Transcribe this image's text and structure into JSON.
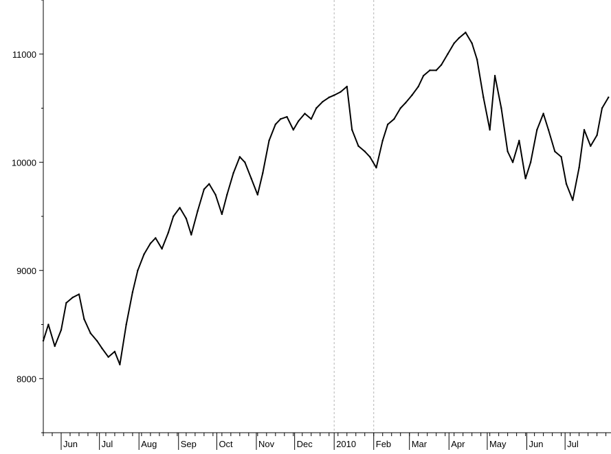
{
  "chart_data": {
    "type": "line",
    "title": "",
    "xlabel": "",
    "ylabel": "",
    "ylim": [
      7500,
      11500
    ],
    "grid": false,
    "y_ticks": [
      8000,
      9000,
      10000,
      11000
    ],
    "x_ticks": [
      "Jun",
      "Jul",
      "Aug",
      "Sep",
      "Oct",
      "Nov",
      "Dec",
      "2010",
      "Feb",
      "Mar",
      "Apr",
      "May",
      "Jun",
      "Jul"
    ],
    "x_tick_dates": [
      "2009-06-01",
      "2009-07-01",
      "2009-08-01",
      "2009-09-01",
      "2009-10-01",
      "2009-11-01",
      "2009-12-01",
      "2010-01-01",
      "2010-02-01",
      "2010-03-01",
      "2010-04-01",
      "2010-05-01",
      "2010-06-01",
      "2010-07-01"
    ],
    "xlim": [
      "2009-05-18",
      "2010-08-06"
    ],
    "vertical_reference_dates": [
      "2010-01-01",
      "2010-02-01"
    ],
    "series": [
      {
        "x": [
          "2009-05-18",
          "2009-05-22",
          "2009-05-27",
          "2009-06-01",
          "2009-06-05",
          "2009-06-10",
          "2009-06-15",
          "2009-06-19",
          "2009-06-24",
          "2009-06-29",
          "2009-07-03",
          "2009-07-08",
          "2009-07-13",
          "2009-07-17",
          "2009-07-22",
          "2009-07-27",
          "2009-07-31",
          "2009-08-05",
          "2009-08-10",
          "2009-08-14",
          "2009-08-19",
          "2009-08-24",
          "2009-08-28",
          "2009-09-02",
          "2009-09-07",
          "2009-09-11",
          "2009-09-16",
          "2009-09-21",
          "2009-09-25",
          "2009-09-30",
          "2009-10-05",
          "2009-10-09",
          "2009-10-14",
          "2009-10-19",
          "2009-10-23",
          "2009-10-28",
          "2009-11-02",
          "2009-11-06",
          "2009-11-11",
          "2009-11-16",
          "2009-11-20",
          "2009-11-25",
          "2009-11-30",
          "2009-12-04",
          "2009-12-09",
          "2009-12-14",
          "2009-12-18",
          "2009-12-23",
          "2009-12-28",
          "2010-01-01",
          "2010-01-06",
          "2010-01-11",
          "2010-01-15",
          "2010-01-20",
          "2010-01-25",
          "2010-01-29",
          "2010-02-03",
          "2010-02-08",
          "2010-02-12",
          "2010-02-17",
          "2010-02-22",
          "2010-02-26",
          "2010-03-03",
          "2010-03-08",
          "2010-03-12",
          "2010-03-17",
          "2010-03-22",
          "2010-03-26",
          "2010-03-31",
          "2010-04-05",
          "2010-04-09",
          "2010-04-14",
          "2010-04-19",
          "2010-04-23",
          "2010-04-28",
          "2010-05-03",
          "2010-05-07",
          "2010-05-12",
          "2010-05-17",
          "2010-05-21",
          "2010-05-26",
          "2010-05-31",
          "2010-06-04",
          "2010-06-09",
          "2010-06-14",
          "2010-06-18",
          "2010-06-23",
          "2010-06-28",
          "2010-07-02",
          "2010-07-07",
          "2010-07-12",
          "2010-07-16",
          "2010-07-21",
          "2010-07-26",
          "2010-07-30",
          "2010-08-04"
        ],
        "values": [
          8350,
          8500,
          8300,
          8450,
          8700,
          8750,
          8780,
          8550,
          8420,
          8350,
          8280,
          8200,
          8250,
          8130,
          8500,
          8800,
          9000,
          9150,
          9250,
          9300,
          9200,
          9350,
          9500,
          9580,
          9480,
          9330,
          9550,
          9750,
          9800,
          9700,
          9520,
          9700,
          9900,
          10050,
          10000,
          9850,
          9700,
          9900,
          10200,
          10350,
          10400,
          10420,
          10300,
          10380,
          10450,
          10400,
          10500,
          10560,
          10600,
          10620,
          10650,
          10700,
          10300,
          10150,
          10100,
          10050,
          9950,
          10200,
          10350,
          10400,
          10500,
          10550,
          10620,
          10700,
          10800,
          10850,
          10850,
          10900,
          11000,
          11100,
          11150,
          11200,
          11100,
          10950,
          10600,
          10300,
          10800,
          10500,
          10100,
          10000,
          10200,
          9850,
          10000,
          10300,
          10450,
          10300,
          10100,
          10050,
          9800,
          9650,
          9950,
          10300,
          10150,
          10250,
          10500,
          10600
        ]
      }
    ]
  }
}
